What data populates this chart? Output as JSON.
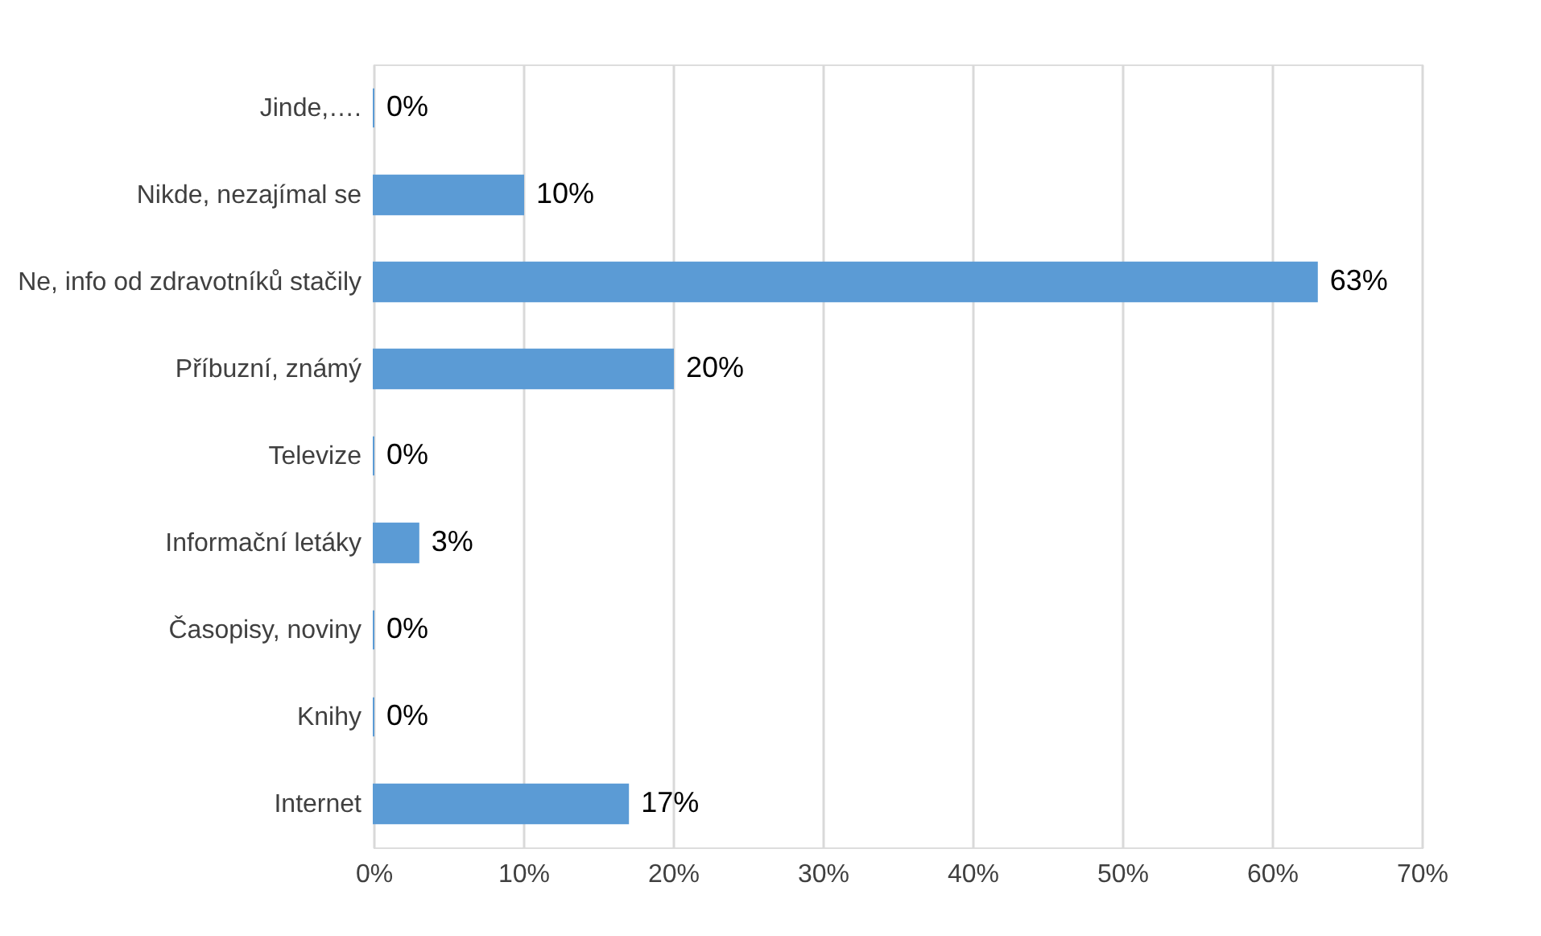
{
  "chart_data": {
    "type": "bar",
    "orientation": "horizontal",
    "categories": [
      "Jinde,….",
      "Nikde, nezajímal se",
      "Ne, info od zdravotníků stačily",
      "Příbuzní, známý",
      "Televize",
      "Informační letáky",
      "Časopisy, noviny",
      "Knihy",
      "Internet"
    ],
    "values": [
      0,
      10,
      63,
      20,
      0,
      3,
      0,
      0,
      17
    ],
    "value_labels": [
      "0%",
      "10%",
      "63%",
      "20%",
      "0%",
      "3%",
      "0%",
      "0%",
      "17%"
    ],
    "color": "#5b9bd5",
    "xlim": [
      0,
      70
    ],
    "xticks": [
      {
        "value": 0,
        "label": "0%"
      },
      {
        "value": 10,
        "label": "10%"
      },
      {
        "value": 20,
        "label": "20%"
      },
      {
        "value": 30,
        "label": "30%"
      },
      {
        "value": 40,
        "label": "40%"
      },
      {
        "value": 50,
        "label": "50%"
      },
      {
        "value": 60,
        "label": "60%"
      },
      {
        "value": 70,
        "label": "70%"
      }
    ],
    "grid": "x"
  }
}
